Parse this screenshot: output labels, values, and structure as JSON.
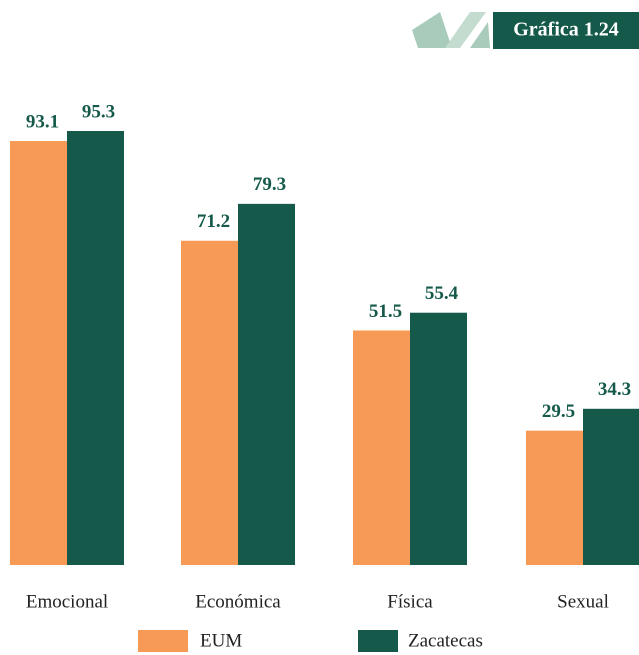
{
  "badge": "Gráfica 1.24",
  "chart_data": {
    "type": "bar",
    "categories": [
      "Emocional",
      "Económica",
      "Física",
      "Sexual"
    ],
    "series": [
      {
        "name": "EUM",
        "color": "#f79a55",
        "values": [
          93.1,
          71.2,
          51.5,
          29.5
        ]
      },
      {
        "name": "Zacatecas",
        "color": "#14594a",
        "values": [
          95.3,
          79.3,
          55.4,
          34.3
        ]
      }
    ],
    "value_label_color": "#14594a",
    "grid": false
  }
}
